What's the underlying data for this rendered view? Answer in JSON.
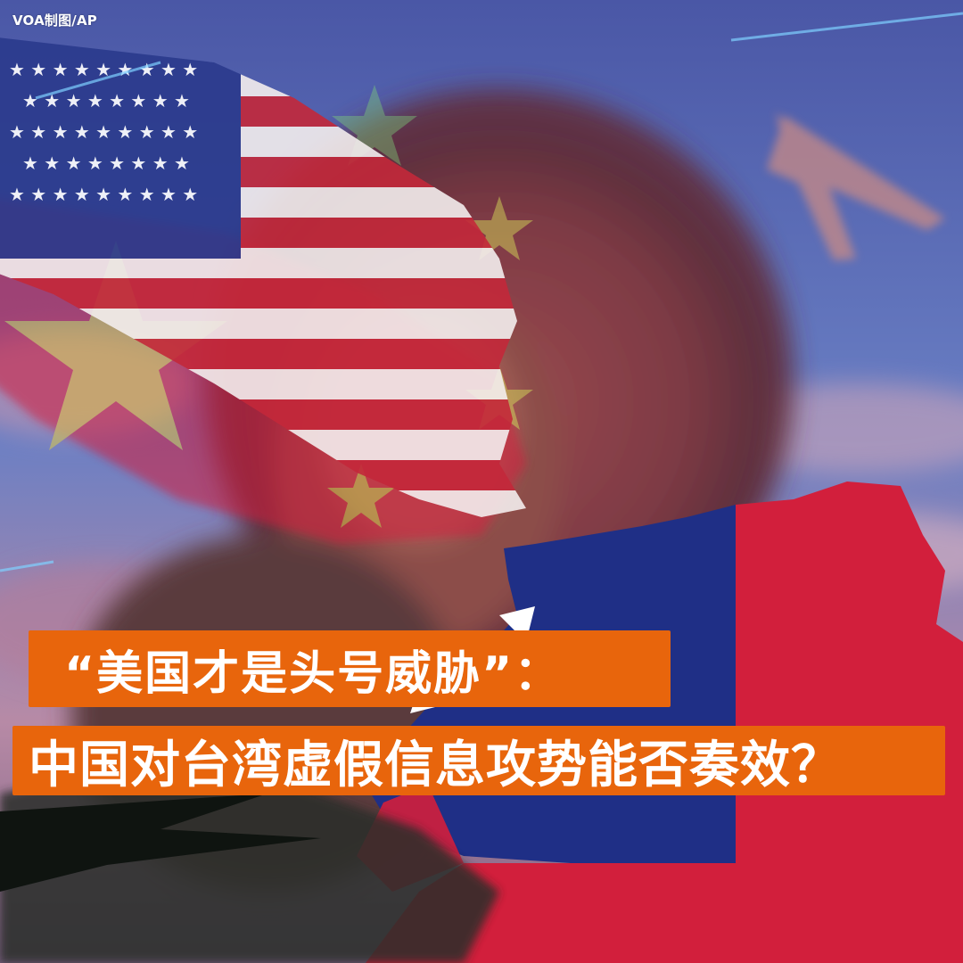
{
  "credit": {
    "text": "VOA制图/AP"
  },
  "headline": {
    "line1": "“美国才是头号威胁”：",
    "line2": "中国对台湾虚假信息攻势能否奏效？"
  },
  "colors": {
    "sky": "#4a5fa8",
    "accent_orange": "#e8650c",
    "flag_red": "#d21f3c",
    "flag_blue": "#1f2f86",
    "us_white": "#f3eeee",
    "cn_yellow": "#e8d63a"
  },
  "imagery": {
    "us_flag": "us-flag",
    "prc_flag": "prc-flag",
    "roc_flag": "roc-flag",
    "blurred_portrait": "blurred-portrait",
    "airplane": "airplane-silhouette"
  }
}
